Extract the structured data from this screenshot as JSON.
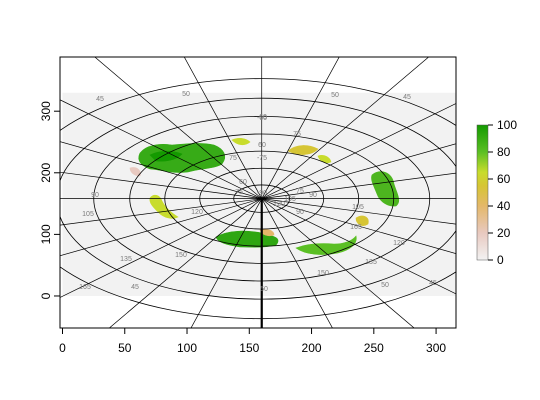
{
  "map": {
    "x_axis": {
      "range": [
        -2,
        316
      ],
      "ticks": [
        "0",
        "50",
        "100",
        "150",
        "200",
        "250",
        "300"
      ]
    },
    "y_axis": {
      "range": [
        -52,
        388
      ],
      "ticks": [
        "0",
        "100",
        "200",
        "300"
      ]
    },
    "raster_extent": {
      "x": [
        0,
        316
      ],
      "y": [
        0,
        330
      ]
    },
    "pole": [
      160,
      158
    ],
    "background_color": "#f2f2f2",
    "graticule_color": "#000000",
    "graticule_labels": {
      "longitude": [
        "45",
        "50",
        "60",
        "75",
        "90",
        "105",
        "120",
        "135",
        "150",
        "165",
        "45",
        "50",
        "45",
        "50",
        "75",
        "60",
        "90",
        "105",
        "120",
        "135",
        "150",
        "165",
        "75",
        "60",
        "45",
        "50",
        "75",
        "90",
        "105",
        "120"
      ],
      "latitude": [
        "-60",
        "-75",
        "-90"
      ]
    }
  },
  "legend": {
    "ticks": [
      "100",
      "80",
      "60",
      "40",
      "20",
      "0"
    ],
    "range": [
      0,
      100
    ],
    "colors": [
      "#f2f2f2",
      "#e8c9c0",
      "#e4b86a",
      "#d6c534",
      "#c8dc2c",
      "#5bbf24",
      "#149a00"
    ]
  }
}
